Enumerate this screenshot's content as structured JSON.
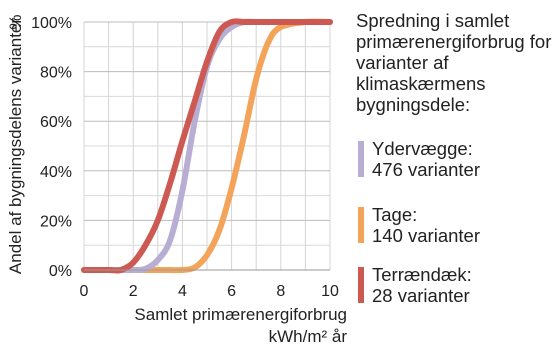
{
  "chart_data": {
    "type": "line",
    "ylabel": "Andel af bygningsdelens varianter",
    "yunit": "%",
    "xlabel": "Samlet primærenergiforbrug",
    "xunit": "kWh/m² år",
    "xlim": [
      0,
      10
    ],
    "ylim": [
      0,
      100
    ],
    "x_ticks": [
      "0",
      "2",
      "4",
      "6",
      "8",
      "10"
    ],
    "y_ticks": [
      "0%",
      "20%",
      "40%",
      "60%",
      "80%",
      "100%"
    ],
    "grid": true,
    "x": [
      0,
      1,
      1.5,
      2,
      2.5,
      3,
      3.5,
      4,
      4.5,
      5,
      5.5,
      6,
      6.5,
      7,
      7.5,
      8,
      9,
      10
    ],
    "series": [
      {
        "name": "Ydervægge",
        "color": "#b8aed3",
        "values": [
          0,
          0,
          0,
          0,
          0.5,
          4,
          12,
          32,
          60,
          82,
          93,
          98,
          100,
          100,
          100,
          100,
          100,
          100
        ]
      },
      {
        "name": "Tage",
        "color": "#f4a45a",
        "values": [
          0,
          0,
          0,
          0,
          0,
          0,
          0,
          0,
          1,
          6,
          16,
          33,
          54,
          77,
          92,
          98,
          100,
          100
        ]
      },
      {
        "name": "Terrændæk",
        "color": "#cd5a52",
        "values": [
          0,
          0,
          0,
          3,
          10,
          20,
          35,
          52,
          68,
          84,
          96,
          100,
          100,
          100,
          100,
          100,
          100,
          100
        ]
      }
    ]
  },
  "legend": {
    "title": "Spredning i samlet primærenergiforbrug for varianter af klimaskærmens bygningsdele:",
    "items": [
      {
        "name": "Ydervægge:",
        "count": "476 varianter",
        "color": "#b8aed3"
      },
      {
        "name": "Tage:",
        "count": "140 varianter",
        "color": "#f4a45a"
      },
      {
        "name": "Terrændæk:",
        "count": "28 varianter",
        "color": "#cd5a52"
      }
    ]
  }
}
